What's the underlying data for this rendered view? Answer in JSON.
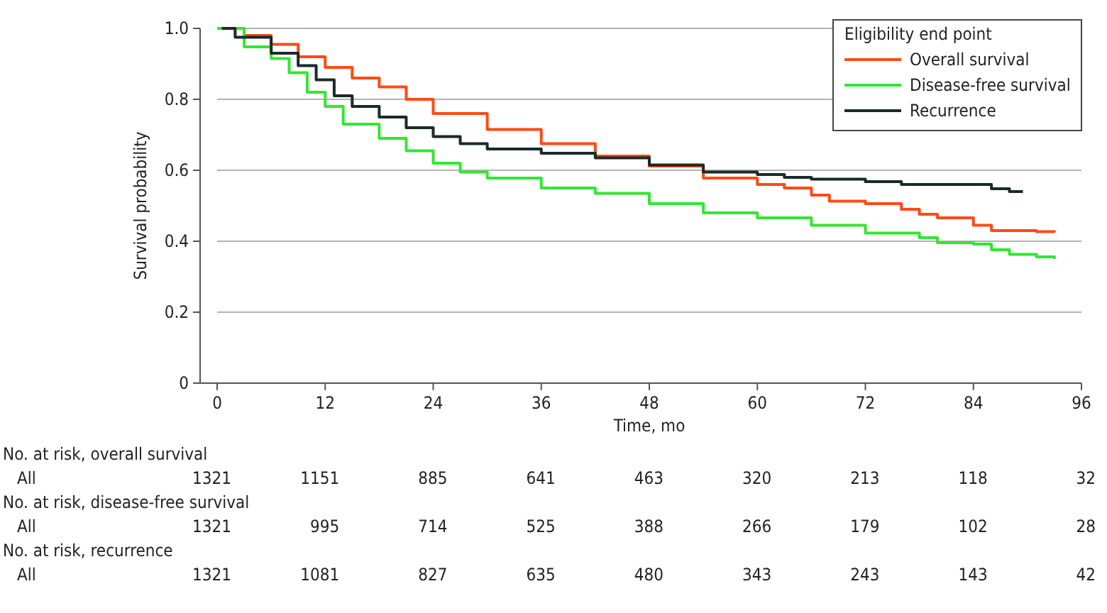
{
  "chart_data": {
    "type": "step",
    "xlabel": "Time, mo",
    "ylabel": "Survival probability",
    "legend_title": "Eligibility end point",
    "legend": "top right",
    "grid": "y",
    "line_style": "solid",
    "marker": "none",
    "xlim": [
      0,
      96
    ],
    "xticks": [
      0,
      12,
      24,
      36,
      48,
      60,
      72,
      84,
      96
    ],
    "ylim": [
      0,
      1
    ],
    "yticks": [
      0,
      {
        "value": 0.2,
        "label": "0.2"
      },
      {
        "value": 0.4,
        "label": "0.4"
      },
      {
        "value": 0.6,
        "label": "0.6"
      },
      {
        "value": 0.8,
        "label": "0.8"
      },
      {
        "value": 1,
        "label": "1.0"
      }
    ],
    "series": [
      {
        "name": "Overall survival",
        "color": "#ff4a14",
        "x": [
          0,
          3,
          6,
          9,
          12,
          15,
          18,
          21,
          24,
          30,
          36,
          42,
          48,
          54,
          60,
          63,
          66,
          68,
          72,
          76,
          78,
          80,
          84,
          86,
          91,
          93
        ],
        "values": [
          1,
          0.98,
          0.955,
          0.92,
          0.89,
          0.86,
          0.835,
          0.8,
          0.76,
          0.715,
          0.675,
          0.64,
          0.612,
          0.578,
          0.56,
          0.55,
          0.53,
          0.513,
          0.506,
          0.49,
          0.476,
          0.466,
          0.445,
          0.43,
          0.427,
          0.425
        ]
      },
      {
        "name": "Disease-free survival",
        "color": "#33e633",
        "x": [
          0,
          3,
          6,
          8,
          10,
          12,
          14,
          18,
          21,
          24,
          27,
          30,
          36,
          42,
          48,
          54,
          60,
          66,
          72,
          78,
          80,
          84,
          86,
          88,
          91,
          93
        ],
        "values": [
          1,
          0.948,
          0.915,
          0.875,
          0.82,
          0.78,
          0.73,
          0.69,
          0.655,
          0.62,
          0.595,
          0.578,
          0.55,
          0.535,
          0.506,
          0.48,
          0.466,
          0.445,
          0.423,
          0.41,
          0.396,
          0.392,
          0.376,
          0.363,
          0.356,
          0.35
        ]
      },
      {
        "name": "Recurrence",
        "color": "#1a2a2a",
        "x": [
          0.5,
          2,
          6,
          9,
          11,
          13,
          15,
          18,
          21,
          24,
          27,
          30,
          36,
          42,
          48,
          54,
          60,
          63,
          66,
          72,
          76,
          84,
          86,
          88,
          89.5
        ],
        "values": [
          1,
          0.975,
          0.93,
          0.895,
          0.855,
          0.81,
          0.78,
          0.75,
          0.72,
          0.695,
          0.675,
          0.66,
          0.648,
          0.635,
          0.615,
          0.595,
          0.588,
          0.58,
          0.575,
          0.568,
          0.56,
          0.56,
          0.548,
          0.54,
          0.54
        ]
      }
    ],
    "annotations": [
      "No. at risk, overall survival",
      "All",
      "1321",
      "1151",
      "885",
      "641",
      "463",
      "320",
      "213",
      "118",
      "32",
      "No. at risk, disease-free survival",
      "All",
      "1321",
      "995",
      "714",
      "525",
      "388",
      "266",
      "179",
      "102",
      "28",
      "No. at risk, recurrence",
      "All",
      "1321",
      "1081",
      "827",
      "635",
      "480",
      "343",
      "243",
      "143",
      "42"
    ]
  }
}
